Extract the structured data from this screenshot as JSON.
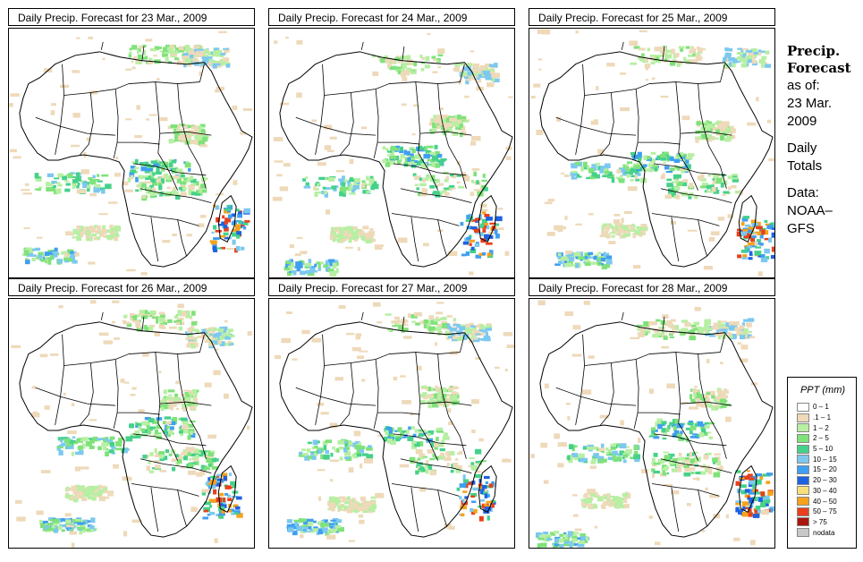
{
  "panels": [
    {
      "title": "Daily Precip. Forecast for  23 Mar., 2009",
      "shift": 0
    },
    {
      "title": "Daily Precip. Forecast for  24 Mar., 2009",
      "shift": 1
    },
    {
      "title": "Daily Precip. Forecast for  25 Mar., 2009",
      "shift": 2
    },
    {
      "title": "Daily Precip. Forecast for  26 Mar., 2009",
      "shift": 3
    },
    {
      "title": "Daily Precip. Forecast for  27 Mar., 2009",
      "shift": 4
    },
    {
      "title": "Daily Precip. Forecast for  28 Mar., 2009",
      "shift": 5
    }
  ],
  "side": {
    "title_line1": "Precip.",
    "title_line2": "Forecast",
    "asof_line1": "as of:",
    "asof_line2": "23 Mar.",
    "asof_line3": "2009",
    "daily_line1": "Daily",
    "daily_line2": "Totals",
    "data_line1": "Data:",
    "data_line2": "NOAA–",
    "data_line3": "GFS"
  },
  "legend": {
    "title": "PPT (mm)",
    "items": [
      {
        "label": "0 – 1",
        "color": "#ffffff"
      },
      {
        "label": ".1 – 1",
        "color": "#eed9b9"
      },
      {
        "label": "1 – 2",
        "color": "#b7efa3"
      },
      {
        "label": "2 – 5",
        "color": "#7fe27a"
      },
      {
        "label": "5 – 10",
        "color": "#45d18a"
      },
      {
        "label": "10 – 15",
        "color": "#7cc8ef"
      },
      {
        "label": "15 – 20",
        "color": "#3f9ff0"
      },
      {
        "label": "20 – 30",
        "color": "#1f62e0"
      },
      {
        "label": "30 – 40",
        "color": "#f7e07a"
      },
      {
        "label": "40 – 50",
        "color": "#f6a21c"
      },
      {
        "label": "50 – 75",
        "color": "#e8401a"
      },
      {
        "label": "> 75",
        "color": "#a8160e"
      },
      {
        "label": "nodata",
        "color": "#c8c8c8"
      }
    ]
  }
}
